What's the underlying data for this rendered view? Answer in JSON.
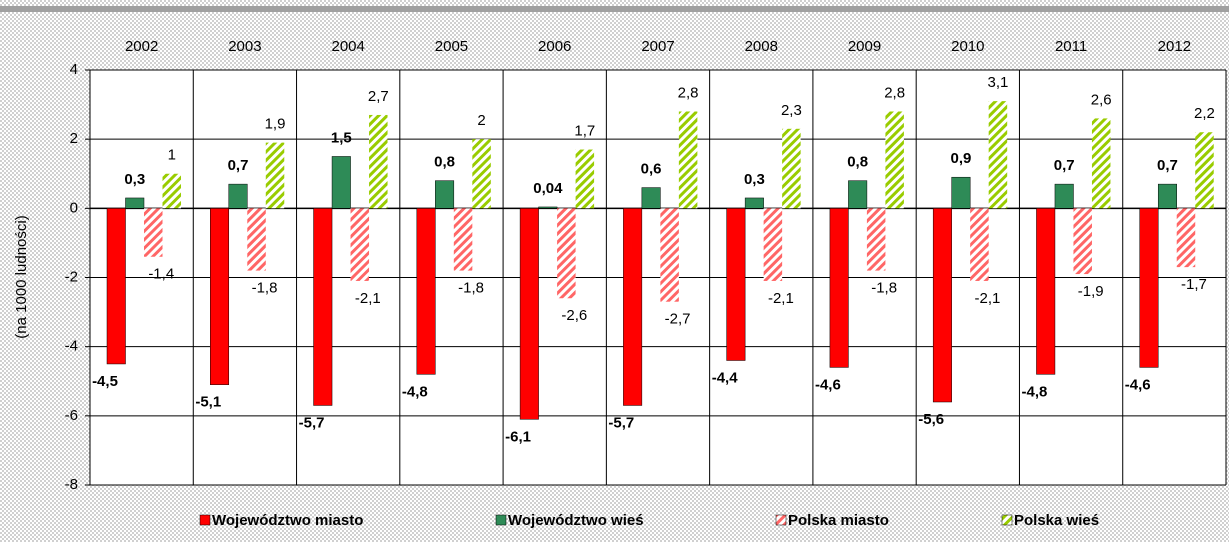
{
  "chart_data": {
    "type": "bar",
    "y_label": "(na 1000 ludności)",
    "categories": [
      "2002",
      "2003",
      "2004",
      "2005",
      "2006",
      "2007",
      "2008",
      "2009",
      "2010",
      "2011",
      "2012"
    ],
    "series": [
      {
        "name": "Województwo miasto",
        "color": "#ff0000",
        "hatch": false,
        "bold_labels": true,
        "values": [
          -4.5,
          -5.1,
          -5.7,
          -4.8,
          -6.1,
          -5.7,
          -4.4,
          -4.6,
          -5.6,
          -4.8,
          -4.6
        ],
        "value_labels": [
          "-4,5",
          "-5,1",
          "-5,7",
          "-4,8",
          "-6,1",
          "-5,7",
          "-4,4",
          "-4,6",
          "-5,6",
          "-4,8",
          "-4,6"
        ]
      },
      {
        "name": "Województwo wieś",
        "color": "#2e8b57",
        "hatch": false,
        "bold_labels": true,
        "values": [
          0.3,
          0.7,
          1.5,
          0.8,
          0.04,
          0.6,
          0.3,
          0.8,
          0.9,
          0.7,
          0.7
        ],
        "value_labels": [
          "0,3",
          "0,7",
          "1,5",
          "0,8",
          "0,04",
          "0,6",
          "0,3",
          "0,8",
          "0,9",
          "0,7",
          "0,7"
        ]
      },
      {
        "name": "Polska miasto",
        "color": "#ff6666",
        "hatch": true,
        "bold_labels": false,
        "values": [
          -1.4,
          -1.8,
          -2.1,
          -1.8,
          -2.6,
          -2.7,
          -2.1,
          -1.8,
          -2.1,
          -1.9,
          -1.7
        ],
        "value_labels": [
          "-1,4",
          "-1,8",
          "-2,1",
          "-1,8",
          "-2,6",
          "-2,7",
          "-2,1",
          "-1,8",
          "-2,1",
          "-1,9",
          "-1,7"
        ]
      },
      {
        "name": "Polska wieś",
        "color": "#99cc00",
        "hatch": true,
        "bold_labels": false,
        "values": [
          1,
          1.9,
          2.7,
          2,
          1.7,
          2.8,
          2.3,
          2.8,
          3.1,
          2.6,
          2.2
        ],
        "value_labels": [
          "1",
          "1,9",
          "2,7",
          "2",
          "1,7",
          "2,8",
          "2,3",
          "2,8",
          "3,1",
          "2,6",
          "2,2"
        ]
      }
    ],
    "ylim": [
      -8,
      4
    ],
    "yticks": [
      4,
      2,
      0,
      -2,
      -4,
      -6,
      -8
    ],
    "grid": true,
    "legend": "bottom"
  }
}
